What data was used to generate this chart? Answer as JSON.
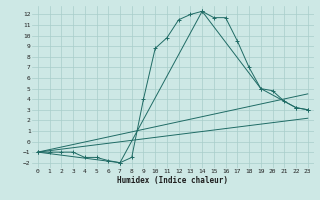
{
  "xlabel": "Humidex (Indice chaleur)",
  "bg_color": "#cde8e5",
  "line_color": "#1f6b65",
  "grid_color": "#a8ceca",
  "xlim": [
    -0.5,
    23.5
  ],
  "ylim": [
    -2.5,
    12.8
  ],
  "xticks": [
    0,
    1,
    2,
    3,
    4,
    5,
    6,
    7,
    8,
    9,
    10,
    11,
    12,
    13,
    14,
    15,
    16,
    17,
    18,
    19,
    20,
    21,
    22,
    23
  ],
  "yticks": [
    -2,
    -1,
    0,
    1,
    2,
    3,
    4,
    5,
    6,
    7,
    8,
    9,
    10,
    11,
    12
  ],
  "series": [
    {
      "x": [
        0,
        1,
        2,
        3,
        4,
        5,
        6,
        7,
        8,
        9,
        10,
        11,
        12,
        13,
        14,
        15,
        16,
        17,
        18,
        19,
        20,
        21,
        22,
        23
      ],
      "y": [
        -1,
        -1,
        -1,
        -1,
        -1.5,
        -1.5,
        -1.8,
        -2,
        -1.5,
        4,
        8.8,
        9.8,
        11.5,
        12,
        12.3,
        11.7,
        11.7,
        9.5,
        7,
        5,
        4.8,
        3.8,
        3.2,
        3.0
      ],
      "marker": true
    },
    {
      "x": [
        0,
        7,
        14,
        19,
        22,
        23
      ],
      "y": [
        -1,
        -2,
        12.3,
        5,
        3.2,
        3.0
      ],
      "marker": true
    },
    {
      "x": [
        0,
        23
      ],
      "y": [
        -1,
        2.2
      ],
      "marker": false
    },
    {
      "x": [
        0,
        23
      ],
      "y": [
        -1,
        4.5
      ],
      "marker": false
    }
  ]
}
